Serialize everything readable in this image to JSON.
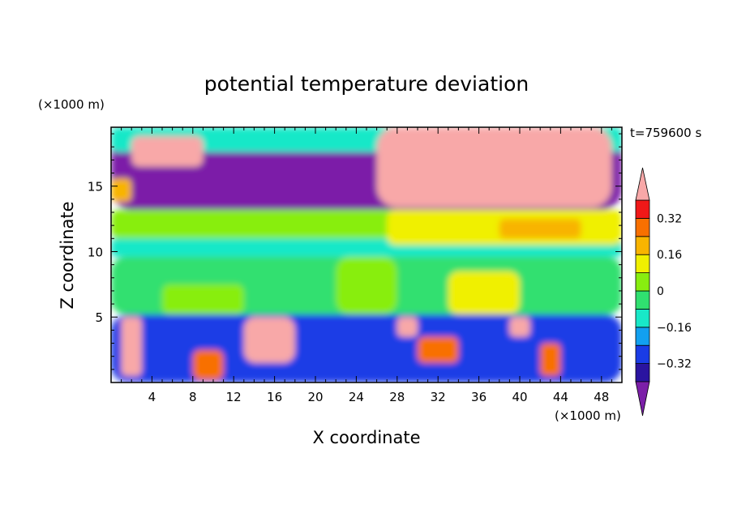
{
  "chart_data": {
    "type": "heatmap",
    "title": "potential temperature deviation",
    "xlabel": "X coordinate",
    "ylabel": "Z coordinate",
    "x_unit": "(×1000 m)",
    "y_unit": "(×1000 m)",
    "time_label": "t=759600 s",
    "xlim": [
      0,
      50
    ],
    "ylim": [
      0,
      19.5
    ],
    "x_ticks": [
      4,
      8,
      12,
      16,
      20,
      24,
      28,
      32,
      36,
      40,
      44,
      48
    ],
    "y_ticks": [
      5,
      10,
      15
    ],
    "colorbar": {
      "tick_labels": [
        "0.32",
        "0.16",
        "0",
        "−0.16",
        "−0.32"
      ],
      "tick_values": [
        0.32,
        0.16,
        0,
        -0.16,
        -0.32
      ],
      "levels": [
        -0.4,
        -0.32,
        -0.24,
        -0.16,
        -0.08,
        0,
        0.08,
        0.16,
        0.24,
        0.32,
        0.4
      ],
      "colors": [
        "#7b1fa8",
        "#2a14a0",
        "#1a3ce6",
        "#12a0f0",
        "#18e8c8",
        "#30e070",
        "#88ee10",
        "#f0f000",
        "#f8b400",
        "#f87000",
        "#f01818",
        "#f8a8a8"
      ],
      "extend": "both"
    },
    "regions": [
      {
        "x0": 0,
        "x1": 50,
        "y0": 13.2,
        "y1": 19.5,
        "value": -0.45
      },
      {
        "x0": 0,
        "x1": 50,
        "y0": 17.6,
        "y1": 19.5,
        "value": -0.1
      },
      {
        "x0": 0,
        "x1": 50,
        "y0": 11.0,
        "y1": 13.2,
        "value": 0.05
      },
      {
        "x0": 0,
        "x1": 50,
        "y0": 9.6,
        "y1": 11.0,
        "value": -0.12
      },
      {
        "x0": 0,
        "x1": 50,
        "y0": 5.2,
        "y1": 9.6,
        "value": -0.03
      },
      {
        "x0": 0,
        "x1": 50,
        "y0": 0,
        "y1": 5.2,
        "value": -0.3
      },
      {
        "x0": 27,
        "x1": 50,
        "y0": 10.5,
        "y1": 13.2,
        "value": 0.1
      },
      {
        "x0": 38,
        "x1": 46,
        "y0": 11.0,
        "y1": 12.5,
        "value": 0.2
      },
      {
        "x0": 26,
        "x1": 49,
        "y0": 13.4,
        "y1": 19.5,
        "value": 0.45
      },
      {
        "x0": 2,
        "x1": 9,
        "y0": 16.5,
        "y1": 18.8,
        "value": 0.45
      },
      {
        "x0": 0,
        "x1": 2,
        "y0": 13.8,
        "y1": 15.6,
        "value": 0.2
      },
      {
        "x0": 1,
        "x1": 3,
        "y0": 0.5,
        "y1": 5.0,
        "value": 0.45
      },
      {
        "x0": 13,
        "x1": 18,
        "y0": 1.5,
        "y1": 5.0,
        "value": 0.45
      },
      {
        "x0": 28,
        "x1": 30,
        "y0": 3.5,
        "y1": 5.0,
        "value": 0.45
      },
      {
        "x0": 39,
        "x1": 41,
        "y0": 3.5,
        "y1": 5.0,
        "value": 0.45
      },
      {
        "x0": 8,
        "x1": 11,
        "y0": 0.2,
        "y1": 2.5,
        "value": 0.3
      },
      {
        "x0": 30,
        "x1": 34,
        "y0": 1.5,
        "y1": 3.5,
        "value": 0.3
      },
      {
        "x0": 42,
        "x1": 44,
        "y0": 0.5,
        "y1": 3.0,
        "value": 0.24
      },
      {
        "x0": 5,
        "x1": 13,
        "y0": 5.2,
        "y1": 7.5,
        "value": 0.02
      },
      {
        "x0": 33,
        "x1": 40,
        "y0": 5.2,
        "y1": 8.5,
        "value": 0.1
      },
      {
        "x0": 22,
        "x1": 28,
        "y0": 5.2,
        "y1": 9.6,
        "value": 0.03
      }
    ]
  }
}
